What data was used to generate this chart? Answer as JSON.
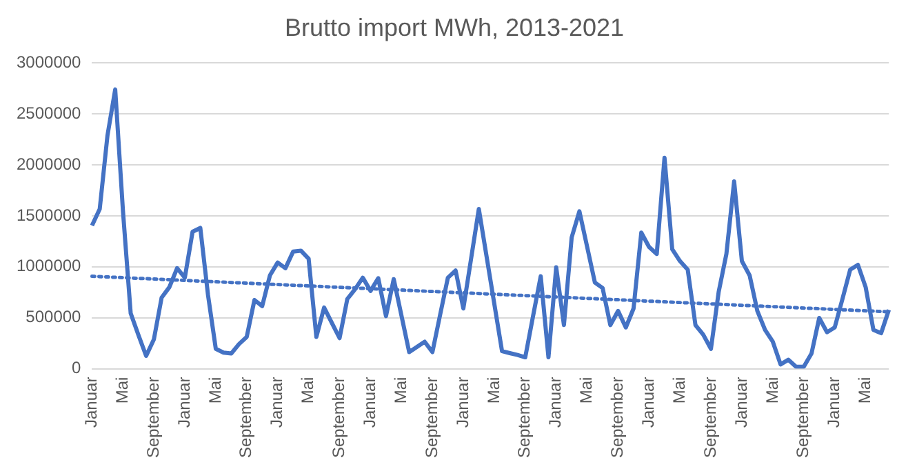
{
  "chart_data": {
    "type": "line",
    "title": "Brutto import MWh, 2013-2021",
    "categories": [
      "Januar",
      null,
      null,
      null,
      "Mai",
      null,
      null,
      null,
      "September",
      null,
      null,
      null,
      "Januar",
      null,
      null,
      null,
      "Mai",
      null,
      null,
      null,
      "September",
      null,
      null,
      null,
      "Januar",
      null,
      null,
      null,
      "Mai",
      null,
      null,
      null,
      "September",
      null,
      null,
      null,
      "Januar",
      null,
      null,
      null,
      "Mai",
      null,
      null,
      null,
      "September",
      null,
      null,
      null,
      "Januar",
      null,
      null,
      null,
      "Mai",
      null,
      null,
      null,
      "September",
      null,
      null,
      null,
      "Januar",
      null,
      null,
      null,
      "Mai",
      null,
      null,
      null,
      "September",
      null,
      null,
      null,
      "Januar",
      null,
      null,
      null,
      "Mai",
      null,
      null,
      null,
      "September",
      null,
      null,
      null,
      "Januar",
      null,
      null,
      null,
      "Mai",
      null,
      null,
      null,
      "September",
      null,
      null,
      null,
      "Januar",
      null,
      null,
      null,
      "Mai",
      null,
      null,
      null
    ],
    "series": [
      {
        "color": "#4472c4",
        "line_style": "solid",
        "values": [
          1405000,
          1567000,
          2288000,
          2740000,
          1550000,
          544000,
          330000,
          126000,
          288000,
          698000,
          800000,
          986000,
          893000,
          1344000,
          1381000,
          720000,
          195000,
          158000,
          149000,
          242000,
          312000,
          674000,
          614000,
          916000,
          1042000,
          986000,
          1149000,
          1158000,
          1079000,
          312000,
          600000,
          450000,
          300000,
          684000,
          780000,
          893000,
          763000,
          888000,
          516000,
          879000,
          521000,
          163000,
          214000,
          265000,
          163000,
          530000,
          893000,
          963000,
          591000,
          1079000,
          1567000,
          1102000,
          637000,
          172000,
          153000,
          135000,
          112000,
          512000,
          907000,
          112000,
          995000,
          428000,
          1288000,
          1544000,
          1195000,
          846000,
          791000,
          428000,
          567000,
          405000,
          591000,
          1335000,
          1195000,
          1126000,
          2070000,
          1172000,
          1056000,
          972000,
          428000,
          335000,
          195000,
          753000,
          1126000,
          1837000,
          1056000,
          916000,
          567000,
          381000,
          265000,
          42000,
          88000,
          19000,
          19000,
          149000,
          498000,
          358000,
          405000,
          684000,
          972000,
          1019000,
          800000,
          381000,
          349000,
          577000
        ]
      },
      {
        "type": "line",
        "color": "#4472c4",
        "line_style": "dotted",
        "values": [
          907000,
          null,
          null,
          null,
          null,
          null,
          null,
          null,
          null,
          null,
          null,
          null,
          null,
          null,
          null,
          null,
          null,
          null,
          null,
          null,
          null,
          null,
          null,
          null,
          null,
          null,
          null,
          null,
          null,
          null,
          null,
          null,
          null,
          null,
          null,
          null,
          null,
          null,
          null,
          null,
          null,
          null,
          null,
          null,
          null,
          null,
          null,
          null,
          null,
          null,
          null,
          null,
          null,
          null,
          null,
          null,
          null,
          null,
          null,
          null,
          null,
          null,
          null,
          null,
          null,
          null,
          null,
          null,
          null,
          null,
          null,
          null,
          null,
          null,
          null,
          null,
          null,
          null,
          null,
          null,
          null,
          null,
          null,
          null,
          null,
          null,
          null,
          null,
          null,
          null,
          null,
          null,
          null,
          null,
          null,
          null,
          null,
          null,
          null,
          null,
          null,
          null,
          null,
          558000
        ]
      }
    ],
    "ylim": [
      0,
      3000000
    ],
    "yticks": [
      0,
      500000,
      1000000,
      1500000,
      2000000,
      2500000,
      3000000
    ],
    "grid": "y",
    "legend": false,
    "marker": "none"
  }
}
